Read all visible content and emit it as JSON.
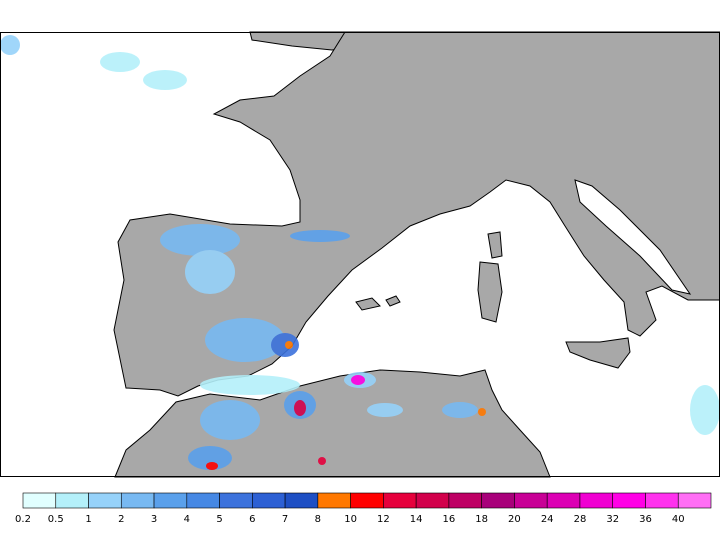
{
  "legend": {
    "labels": [
      0.2,
      0.5,
      1,
      2,
      3,
      4,
      5,
      6,
      7,
      8,
      10,
      12,
      14,
      16,
      18,
      20,
      24,
      28,
      32,
      36,
      40
    ],
    "colors": [
      "#e1ffff",
      "#b4f0fa",
      "#96d2fa",
      "#78b9f2",
      "#5aa0eb",
      "#4688e4",
      "#3c72dc",
      "#2d60d4",
      "#1e4fc4",
      "#ff7800",
      "#ff0000",
      "#e6003c",
      "#d2004b",
      "#be0064",
      "#a8007a",
      "#c80096",
      "#dc00b4",
      "#f000d2",
      "#ff00e6",
      "#ff32ee",
      "#ff6ef5"
    ]
  }
}
